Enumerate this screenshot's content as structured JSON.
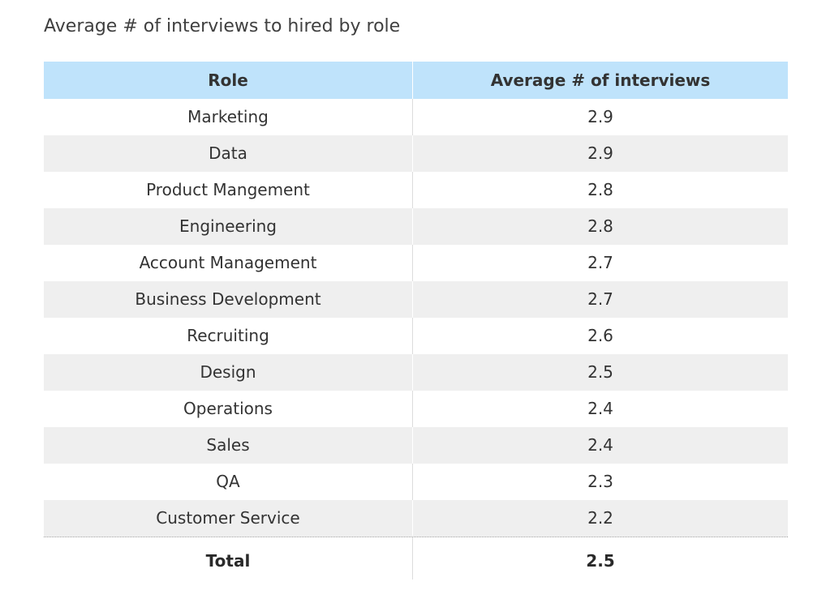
{
  "title": "Average # of interviews to hired by role",
  "chart_data": {
    "type": "table",
    "title": "Average # of interviews to hired by role",
    "columns": [
      "Role",
      "Average # of interviews"
    ],
    "rows": [
      {
        "role": "Marketing",
        "value": "2.9"
      },
      {
        "role": "Data",
        "value": "2.9"
      },
      {
        "role": "Product Mangement",
        "value": "2.8"
      },
      {
        "role": "Engineering",
        "value": "2.8"
      },
      {
        "role": "Account Management",
        "value": "2.7"
      },
      {
        "role": "Business Development",
        "value": "2.7"
      },
      {
        "role": "Recruiting",
        "value": "2.6"
      },
      {
        "role": "Design",
        "value": "2.5"
      },
      {
        "role": "Operations",
        "value": "2.4"
      },
      {
        "role": "Sales",
        "value": "2.4"
      },
      {
        "role": "QA",
        "value": "2.3"
      },
      {
        "role": "Customer Service",
        "value": "2.2"
      }
    ],
    "total": {
      "label": "Total",
      "value": "2.5"
    }
  },
  "colors": {
    "header_bg": "#bfe3fb",
    "alt_row_bg": "#efefef"
  }
}
